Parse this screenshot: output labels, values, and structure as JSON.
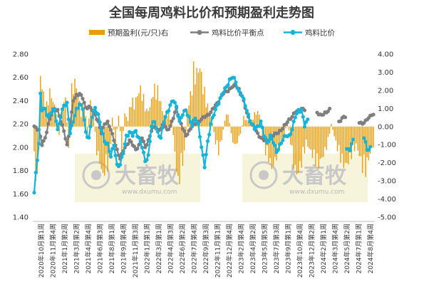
{
  "chart_data": {
    "type": "bar+line",
    "title": "全国每周鸡料比价和预期盈利走势图",
    "legend": [
      "预期盈利(元/只)右",
      "鸡料比价平衡点",
      "鸡料比价"
    ],
    "colors": {
      "profit": "#E89D0C",
      "balance": "#7F7F7F",
      "ratio": "#18B4D8"
    },
    "left_axis": {
      "min": 1.4,
      "max": 2.8,
      "ticks": [
        "1.40",
        "1.60",
        "1.80",
        "2.00",
        "2.20",
        "2.40",
        "2.60",
        "2.80"
      ]
    },
    "right_axis": {
      "min": -5,
      "max": 4,
      "ticks": [
        "4.00",
        "3.00",
        "2.00",
        "1.00",
        "0.00",
        "-1.00",
        "-2.00",
        "-3.00",
        "-4.00",
        "-5.00"
      ]
    },
    "x_labels": [
      "2020年10月第1周",
      "2020年11月第4周",
      "2021年1月第2周",
      "2021年3月第2周",
      "2021年4月第4周",
      "2021年6月第3周",
      "2021年8月第1周",
      "2021年9月第4周",
      "2021年11月第3周",
      "2022年1月第1周",
      "2022年3月第1周",
      "2022年4月第3周",
      "2022年6月第2周",
      "2022年7月第4周",
      "2022年9月第3周",
      "2022年11月第1周",
      "2022年12月第4周",
      "2023年2月第4周",
      "2023年4月第2周",
      "2023年5月第5周",
      "2023年7月第3周",
      "2023年9月第1周",
      "2023年10月第4周",
      "2023年12月第2周",
      "2024年2月第1周",
      "2024年3月第4周",
      "2024年5月第2周",
      "2024年7月第1周",
      "2024年8月第4周"
    ],
    "ratio_keypoints": [
      [
        0,
        1.61
      ],
      [
        1,
        1.78
      ],
      [
        3,
        2.03
      ],
      [
        4,
        2.45
      ],
      [
        5,
        2.32
      ],
      [
        7,
        2.33
      ],
      [
        9,
        2.26
      ],
      [
        11,
        2.3
      ],
      [
        13,
        2.33
      ],
      [
        15,
        2.15
      ],
      [
        17,
        2.26
      ],
      [
        19,
        2.36
      ],
      [
        21,
        2.38
      ],
      [
        23,
        2.12
      ],
      [
        25,
        2.22
      ],
      [
        27,
        2.33
      ],
      [
        29,
        2.37
      ],
      [
        31,
        2.33
      ],
      [
        33,
        2.13
      ],
      [
        35,
        2.08
      ],
      [
        37,
        2.26
      ],
      [
        39,
        2.34
      ],
      [
        41,
        2.28
      ],
      [
        43,
        2.15
      ],
      [
        45,
        2.05
      ],
      [
        47,
        2.03
      ],
      [
        49,
        1.92
      ],
      [
        51,
        2.02
      ],
      [
        53,
        1.85
      ],
      [
        55,
        1.85
      ],
      [
        57,
        1.95
      ],
      [
        59,
        2.1
      ],
      [
        61,
        2.13
      ],
      [
        63,
        2.1
      ],
      [
        65,
        2.14
      ],
      [
        67,
        2.08
      ],
      [
        69,
        2.0
      ],
      [
        71,
        1.88
      ],
      [
        73,
        1.93
      ],
      [
        75,
        2.18
      ],
      [
        77,
        2.22
      ],
      [
        79,
        2.13
      ],
      [
        81,
        2.08
      ],
      [
        83,
        2.22
      ],
      [
        85,
        2.3
      ],
      [
        87,
        2.36
      ],
      [
        89,
        2.4
      ],
      [
        91,
        2.35
      ],
      [
        93,
        2.22
      ],
      [
        95,
        2.28
      ],
      [
        97,
        2.32
      ],
      [
        99,
        2.26
      ],
      [
        101,
        2.18
      ],
      [
        103,
        2.25
      ],
      [
        105,
        2.2
      ],
      [
        107,
        2.0
      ],
      [
        109,
        1.83
      ],
      [
        111,
        2.05
      ],
      [
        113,
        2.2
      ],
      [
        115,
        2.28
      ],
      [
        117,
        2.36
      ],
      [
        119,
        2.42
      ],
      [
        121,
        2.47
      ],
      [
        123,
        2.52
      ],
      [
        125,
        2.58
      ],
      [
        127,
        2.6
      ],
      [
        129,
        2.56
      ],
      [
        131,
        2.48
      ],
      [
        133,
        2.44
      ],
      [
        135,
        2.36
      ],
      [
        137,
        2.28
      ],
      [
        139,
        2.2
      ],
      [
        141,
        2.16
      ],
      [
        143,
        2.18
      ],
      [
        145,
        2.22
      ],
      [
        147,
        2.1
      ],
      [
        149,
        2.04
      ],
      [
        151,
        2.1
      ],
      [
        153,
        2.04
      ],
      [
        155,
        1.96
      ],
      [
        157,
        2.02
      ],
      [
        159,
        2.06
      ],
      [
        161,
        2.1
      ],
      [
        163,
        2.1
      ],
      [
        165,
        2.15
      ],
      [
        167,
        2.26
      ],
      [
        169,
        2.32
      ],
      [
        171,
        2.32
      ],
      [
        173,
        2.18
      ],
      [
        175,
        2.24
      ],
      [
        177,
        null
      ],
      [
        199,
        null
      ],
      [
        200,
        1.98
      ],
      [
        202,
        1.99
      ],
      [
        204,
        2.06
      ],
      [
        205,
        null
      ],
      [
        210,
        null
      ],
      [
        211,
        2.08
      ],
      [
        213,
        1.98
      ],
      [
        215,
        2.0
      ]
    ],
    "balance_keypoints": [
      [
        0,
        2.18
      ],
      [
        3,
        2.15
      ],
      [
        5,
        2.02
      ],
      [
        7,
        2.08
      ],
      [
        9,
        2.2
      ],
      [
        11,
        2.28
      ],
      [
        13,
        2.33
      ],
      [
        15,
        2.32
      ],
      [
        17,
        2.22
      ],
      [
        19,
        2.14
      ],
      [
        21,
        2.02
      ],
      [
        23,
        2.18
      ],
      [
        25,
        2.4
      ],
      [
        27,
        2.45
      ],
      [
        29,
        2.46
      ],
      [
        31,
        2.42
      ],
      [
        33,
        2.34
      ],
      [
        35,
        2.35
      ],
      [
        37,
        2.32
      ],
      [
        39,
        2.28
      ],
      [
        41,
        2.22
      ],
      [
        43,
        2.12
      ],
      [
        45,
        2.2
      ],
      [
        47,
        2.22
      ],
      [
        49,
        2.15
      ],
      [
        51,
        2.06
      ],
      [
        53,
        1.98
      ],
      [
        55,
        1.9
      ],
      [
        57,
        1.97
      ],
      [
        59,
        2.02
      ],
      [
        61,
        2.06
      ],
      [
        63,
        2.02
      ],
      [
        65,
        1.98
      ],
      [
        67,
        2.02
      ],
      [
        69,
        2.08
      ],
      [
        71,
        2.0
      ],
      [
        73,
        2.06
      ],
      [
        75,
        2.14
      ],
      [
        77,
        2.18
      ],
      [
        79,
        2.15
      ],
      [
        81,
        2.16
      ],
      [
        83,
        2.2
      ],
      [
        85,
        2.15
      ],
      [
        87,
        2.18
      ],
      [
        89,
        2.25
      ],
      [
        91,
        2.34
      ],
      [
        93,
        2.24
      ],
      [
        95,
        2.16
      ],
      [
        97,
        2.1
      ],
      [
        99,
        2.14
      ],
      [
        101,
        2.18
      ],
      [
        103,
        2.2
      ],
      [
        105,
        2.22
      ],
      [
        107,
        2.24
      ],
      [
        109,
        2.26
      ],
      [
        111,
        2.28
      ],
      [
        113,
        2.3
      ],
      [
        115,
        2.34
      ],
      [
        117,
        2.38
      ],
      [
        119,
        2.42
      ],
      [
        121,
        2.46
      ],
      [
        123,
        2.48
      ],
      [
        125,
        2.5
      ],
      [
        127,
        2.52
      ],
      [
        129,
        2.53
      ],
      [
        131,
        2.5
      ],
      [
        133,
        2.44
      ],
      [
        135,
        2.34
      ],
      [
        137,
        2.26
      ],
      [
        139,
        2.2
      ],
      [
        141,
        2.16
      ],
      [
        143,
        2.12
      ],
      [
        145,
        2.08
      ],
      [
        147,
        2.06
      ],
      [
        149,
        2.06
      ],
      [
        151,
        2.08
      ],
      [
        153,
        2.1
      ],
      [
        155,
        2.12
      ],
      [
        157,
        2.14
      ],
      [
        159,
        2.16
      ],
      [
        161,
        2.2
      ],
      [
        163,
        2.24
      ],
      [
        165,
        2.26
      ],
      [
        167,
        2.3
      ],
      [
        169,
        2.32
      ],
      [
        171,
        2.33
      ],
      [
        173,
        2.32
      ],
      [
        175,
        null
      ],
      [
        180,
        null
      ],
      [
        181,
        2.3
      ],
      [
        183,
        2.28
      ],
      [
        185,
        2.28
      ],
      [
        187,
        2.3
      ],
      [
        189,
        2.33
      ],
      [
        191,
        null
      ],
      [
        194,
        null
      ],
      [
        195,
        2.22
      ],
      [
        197,
        2.25
      ],
      [
        199,
        2.26
      ],
      [
        201,
        null
      ],
      [
        207,
        null
      ],
      [
        208,
        2.22
      ],
      [
        210,
        2.2
      ],
      [
        212,
        2.22
      ],
      [
        214,
        2.26
      ],
      [
        216,
        2.28
      ],
      [
        217,
        2.28
      ]
    ],
    "profit_envelope": [
      [
        0,
        -2.5
      ],
      [
        2,
        -3.6
      ],
      [
        4,
        3.2
      ],
      [
        6,
        2.0
      ],
      [
        8,
        1.4
      ],
      [
        10,
        2.2
      ],
      [
        12,
        1.6
      ],
      [
        14,
        1.0
      ],
      [
        16,
        -0.8
      ],
      [
        18,
        1.2
      ],
      [
        20,
        1.8
      ],
      [
        22,
        -1.2
      ],
      [
        24,
        2.4
      ],
      [
        26,
        2.8
      ],
      [
        28,
        2.2
      ],
      [
        30,
        0.8
      ],
      [
        32,
        1.8
      ],
      [
        34,
        -0.6
      ],
      [
        36,
        1.6
      ],
      [
        38,
        0.6
      ],
      [
        40,
        -1.6
      ],
      [
        42,
        -2.2
      ],
      [
        44,
        -3.2
      ],
      [
        46,
        -2.4
      ],
      [
        48,
        -2.6
      ],
      [
        50,
        0.6
      ],
      [
        52,
        -1.0
      ],
      [
        54,
        0.6
      ],
      [
        56,
        -1.5
      ],
      [
        58,
        0.8
      ],
      [
        60,
        0.4
      ],
      [
        62,
        1.8
      ],
      [
        64,
        1.4
      ],
      [
        66,
        2.0
      ],
      [
        68,
        2.4
      ],
      [
        70,
        1.8
      ],
      [
        72,
        1.0
      ],
      [
        74,
        1.2
      ],
      [
        76,
        2.2
      ],
      [
        78,
        2.6
      ],
      [
        80,
        2.0
      ],
      [
        82,
        1.0
      ],
      [
        84,
        0.6
      ],
      [
        86,
        0.8
      ],
      [
        88,
        0.4
      ],
      [
        90,
        -1.6
      ],
      [
        92,
        -3.8
      ],
      [
        94,
        -2.6
      ],
      [
        96,
        -1.8
      ],
      [
        98,
        1.0
      ],
      [
        100,
        2.0
      ],
      [
        102,
        3.6
      ],
      [
        104,
        3.4
      ],
      [
        106,
        3.8
      ],
      [
        108,
        2.6
      ],
      [
        110,
        1.8
      ],
      [
        112,
        0.8
      ],
      [
        114,
        0.2
      ],
      [
        116,
        -1.0
      ],
      [
        118,
        -1.6
      ],
      [
        120,
        -0.8
      ],
      [
        122,
        0.4
      ],
      [
        124,
        1.0
      ],
      [
        126,
        -0.6
      ],
      [
        128,
        -1.2
      ],
      [
        130,
        -1.0
      ],
      [
        132,
        -0.4
      ],
      [
        134,
        0.6
      ],
      [
        136,
        0.4
      ],
      [
        138,
        0.2
      ],
      [
        140,
        0.6
      ],
      [
        142,
        1.0
      ],
      [
        144,
        0.8
      ],
      [
        146,
        -0.8
      ],
      [
        148,
        -1.6
      ],
      [
        150,
        -2.0
      ],
      [
        152,
        -2.6
      ],
      [
        154,
        -2.2
      ],
      [
        156,
        -1.6
      ],
      [
        158,
        -1.0
      ],
      [
        160,
        -0.6
      ],
      [
        162,
        0.4
      ],
      [
        164,
        -1.0
      ],
      [
        166,
        -2.4
      ],
      [
        168,
        -3.0
      ],
      [
        170,
        -2.6
      ],
      [
        172,
        -2.0
      ],
      [
        174,
        -1.0
      ],
      [
        176,
        -1.4
      ],
      [
        178,
        -1.8
      ],
      [
        180,
        -2.2
      ],
      [
        182,
        -2.4
      ],
      [
        184,
        -2.0
      ],
      [
        186,
        -1.6
      ],
      [
        188,
        -1.0
      ],
      [
        190,
        0.2
      ],
      [
        192,
        -0.6
      ],
      [
        194,
        -1.4
      ],
      [
        196,
        -2.0
      ],
      [
        198,
        -2.4
      ],
      [
        200,
        -2.4
      ],
      [
        202,
        -2.0
      ],
      [
        204,
        -1.6
      ],
      [
        206,
        -1.2
      ],
      [
        208,
        -1.8
      ],
      [
        210,
        -2.6
      ],
      [
        212,
        -2.8
      ],
      [
        214,
        -2.0
      ],
      [
        217,
        -1.2
      ]
    ],
    "n_points": 218
  },
  "watermark": {
    "text": "大畜牧",
    "url": "www.dxumu.com"
  }
}
